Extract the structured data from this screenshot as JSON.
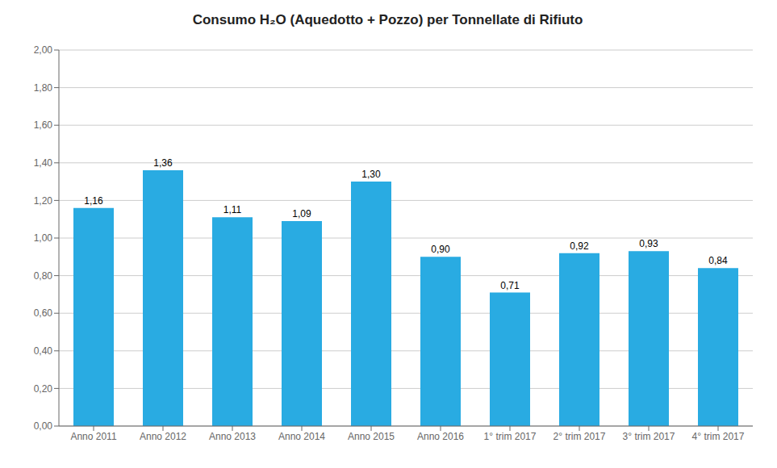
{
  "chart_data": {
    "type": "bar",
    "title": "Consumo H₂O (Aquedotto + Pozzo) per Tonnellate di Rifiuto",
    "categories": [
      "Anno 2011",
      "Anno 2012",
      "Anno 2013",
      "Anno 2014",
      "Anno 2015",
      "Anno 2016",
      "1° trim 2017",
      "2° trim 2017",
      "3° trim 2017",
      "4° trim 2017"
    ],
    "values": [
      1.16,
      1.36,
      1.11,
      1.09,
      1.3,
      0.9,
      0.71,
      0.92,
      0.93,
      0.84
    ],
    "value_labels": [
      "1,16",
      "1,36",
      "1,11",
      "1,09",
      "1,30",
      "0,90",
      "0,71",
      "0,92",
      "0,93",
      "0,84"
    ],
    "data_labels": true,
    "color": "#29ABE2",
    "ylim": [
      0,
      2.0
    ],
    "yticks": [
      {
        "value": 0.0,
        "label": "0,00"
      },
      {
        "value": 0.2,
        "label": "0,20"
      },
      {
        "value": 0.4,
        "label": "0,40"
      },
      {
        "value": 0.6,
        "label": "0,60"
      },
      {
        "value": 0.8,
        "label": "0,80"
      },
      {
        "value": 1.0,
        "label": "1,00"
      },
      {
        "value": 1.2,
        "label": "1,20"
      },
      {
        "value": 1.4,
        "label": "1,40"
      },
      {
        "value": 1.6,
        "label": "1,60"
      },
      {
        "value": 1.8,
        "label": "1,80"
      },
      {
        "value": 2.0,
        "label": "2,00"
      }
    ],
    "grid": true
  }
}
